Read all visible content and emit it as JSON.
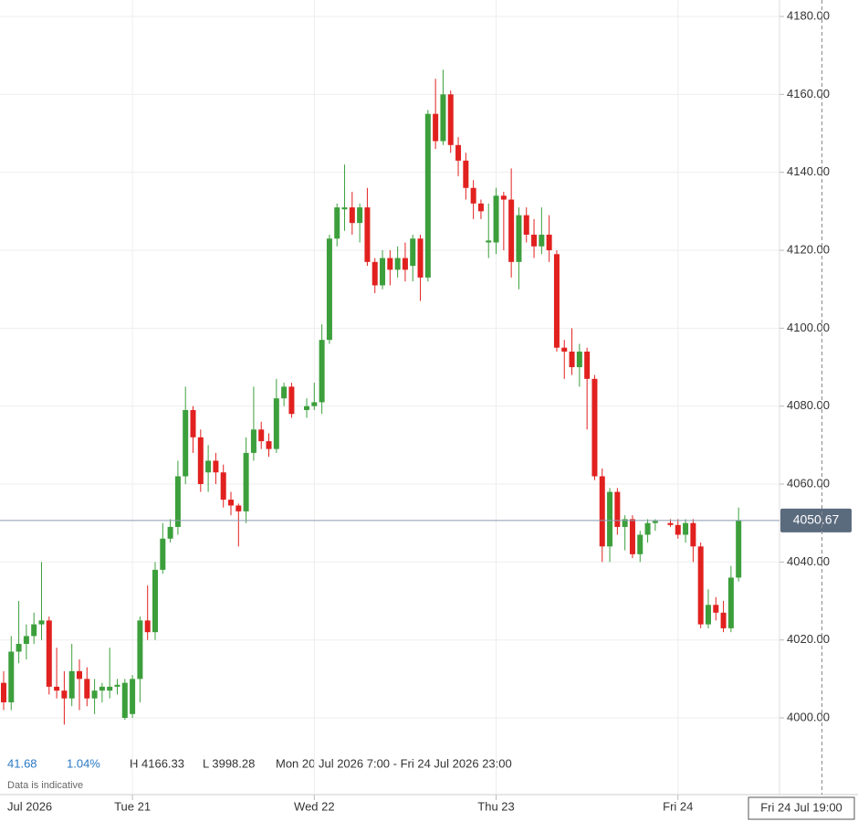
{
  "chart_data": {
    "type": "candlestick",
    "change": "41.68",
    "change_pct": "1.04%",
    "high_label": "H 4166.33",
    "low_label": "L 3998.28",
    "range_label": "Mon 20 Jul 2026 7:00 - Fri 24 Jul 2026 23:00",
    "note": "Data is indicative",
    "date_label": "Jul 2026",
    "up_color": "#3c9f3c",
    "down_color": "#e1211f",
    "grid": true,
    "ylim": [
      3987.35,
      4184.22
    ],
    "yticks": [
      {
        "value": 4000,
        "label": "4000.00"
      },
      {
        "value": 4020,
        "label": "4020.00"
      },
      {
        "value": 4040,
        "label": "4040.00"
      },
      {
        "value": 4060,
        "label": "4060.00"
      },
      {
        "value": 4080,
        "label": "4080.00"
      },
      {
        "value": 4100,
        "label": "4100.00"
      },
      {
        "value": 4120,
        "label": "4120.00"
      },
      {
        "value": 4140,
        "label": "4140.00"
      },
      {
        "value": 4160,
        "label": "4160.00"
      },
      {
        "value": 4180,
        "label": "4180.00"
      }
    ],
    "xlim": [
      -0.48,
      102.4
    ],
    "xticks": [
      {
        "value": 17,
        "label": "Tue 21"
      },
      {
        "value": 41,
        "label": "Wed 22"
      },
      {
        "value": 65,
        "label": "Thu 23"
      },
      {
        "value": 89,
        "label": "Fri 24"
      }
    ],
    "last_price": 4050.67,
    "crosshair": {
      "value": 108,
      "label": "Fri 24 Jul 19:00"
    },
    "x": [
      0,
      1,
      2,
      3,
      4,
      5,
      6,
      7,
      8,
      9,
      10,
      11,
      12,
      13,
      14,
      15,
      16,
      17,
      18,
      19,
      20,
      21,
      22,
      23,
      24,
      25,
      26,
      27,
      28,
      29,
      30,
      31,
      32,
      33,
      34,
      35,
      36,
      37,
      38,
      40,
      41,
      42,
      43,
      44,
      45,
      46,
      47,
      48,
      49,
      50,
      51,
      52,
      53,
      54,
      55,
      56,
      57,
      58,
      59,
      60,
      61,
      62,
      63,
      64,
      65,
      66,
      67,
      68,
      69,
      70,
      71,
      72,
      73,
      74,
      75,
      76,
      77,
      78,
      79,
      80,
      81,
      82,
      83,
      84,
      85,
      86,
      88,
      89,
      90,
      91,
      92,
      93,
      94,
      95,
      96,
      97
    ],
    "open": [
      4009,
      4004,
      4017,
      4019,
      4021,
      4024,
      4025,
      4008,
      4007,
      4005,
      4012,
      4010,
      4005,
      4007,
      4007,
      4008,
      4000,
      4001,
      4010,
      4025,
      4022,
      4038,
      4046,
      4049,
      4062,
      4079,
      4072,
      4063,
      4066,
      4063,
      4056,
      4054.5,
      4053,
      4068,
      4074,
      4071,
      4069,
      4082,
      4085,
      4079,
      4080,
      4081,
      4097,
      4123,
      4130.5,
      4131,
      4127,
      4131,
      4117,
      4111,
      4118,
      4115,
      4118,
      4116,
      4123,
      4113,
      4155,
      4148,
      4160,
      4147,
      4143,
      4136,
      4132,
      4122,
      4122,
      4134,
      4133,
      4117,
      4129,
      4124,
      4121,
      4124,
      4119,
      4095,
      4094,
      4090,
      4094,
      4087,
      4062,
      4044,
      4058,
      4049,
      4051,
      4042,
      4047,
      4050,
      4050,
      4049.5,
      4047,
      4050,
      4044,
      4024,
      4029,
      4027,
      4023,
      4036
    ],
    "high": [
      4012,
      4021,
      4030,
      4024,
      4027,
      4040,
      4026,
      4018,
      4012,
      4019,
      4015,
      4013,
      4010,
      4009,
      4018,
      4010,
      4010,
      4011,
      4026,
      4034,
      4040,
      4050,
      4051,
      4066,
      4085,
      4080,
      4074,
      4070,
      4068,
      4065,
      4058,
      4055,
      4072,
      4085,
      4076,
      4073,
      4087,
      4086,
      4086,
      4082,
      4086,
      4101,
      4124,
      4132,
      4142,
      4135,
      4132,
      4136,
      4118,
      4120,
      4120,
      4121,
      4122,
      4124,
      4124,
      4156,
      4164,
      4166.33,
      4161,
      4149,
      4145,
      4138,
      4133,
      4132,
      4136,
      4135,
      4141,
      4131,
      4131,
      4128,
      4131,
      4129,
      4120,
      4097,
      4100,
      4096,
      4095,
      4088,
      4064,
      4059,
      4059,
      4052,
      4052,
      4048,
      4051,
      4051,
      4051,
      4051,
      4051,
      4051,
      4045,
      4033,
      4031,
      4030,
      4039,
      4054
    ],
    "low": [
      4002,
      4002,
      4014,
      4015,
      4019,
      4020,
      4006,
      4005,
      3998.28,
      4003,
      4002,
      4003,
      4001,
      4004,
      4005,
      4006,
      3999.5,
      4000,
      4004,
      4020,
      4020,
      4037,
      4045,
      4047,
      4060,
      4068,
      4058,
      4058,
      4060,
      4054,
      4052,
      4044,
      4050,
      4066,
      4069,
      4067,
      4068,
      4080,
      4077,
      4077,
      4079,
      4078,
      4096,
      4121,
      4125,
      4124,
      4122,
      4116,
      4109,
      4110,
      4111,
      4113,
      4112,
      4112,
      4107,
      4112,
      4146,
      4147,
      4145,
      4139,
      4133,
      4128,
      4128,
      4118,
      4119,
      4120,
      4113,
      4110,
      4122,
      4118,
      4119,
      4117,
      4094,
      4087,
      4088,
      4085,
      4074,
      4061,
      4040,
      4040,
      4047,
      4043,
      4041,
      4040,
      4045,
      4048,
      4049,
      4046,
      4045,
      4040,
      4023,
      4023,
      4025,
      4022,
      4022,
      4035
    ],
    "close": [
      4004,
      4017,
      4019,
      4021,
      4024,
      4025,
      4008,
      4007,
      4005,
      4012,
      4010,
      4005,
      4007,
      4008,
      4008,
      4008.5,
      4009,
      4010,
      4025,
      4022,
      4038,
      4046,
      4049,
      4062,
      4079,
      4072,
      4060,
      4066,
      4063,
      4056,
      4054.5,
      4053,
      4068,
      4074,
      4071,
      4069,
      4082,
      4085,
      4078,
      4080,
      4081,
      4097,
      4123,
      4131,
      4131,
      4127,
      4131,
      4117,
      4111,
      4118,
      4115,
      4118,
      4115,
      4123,
      4113,
      4155,
      4148,
      4160,
      4147,
      4143,
      4136,
      4132,
      4130,
      4122.5,
      4134,
      4133,
      4117,
      4129,
      4124,
      4121,
      4124,
      4120,
      4095,
      4094,
      4090,
      4094,
      4087,
      4062,
      4044,
      4058,
      4049,
      4051,
      4042,
      4047,
      4050,
      4050.5,
      4049.5,
      4047,
      4050,
      4044,
      4024,
      4029,
      4027,
      4023,
      4036,
      4050.67
    ]
  }
}
